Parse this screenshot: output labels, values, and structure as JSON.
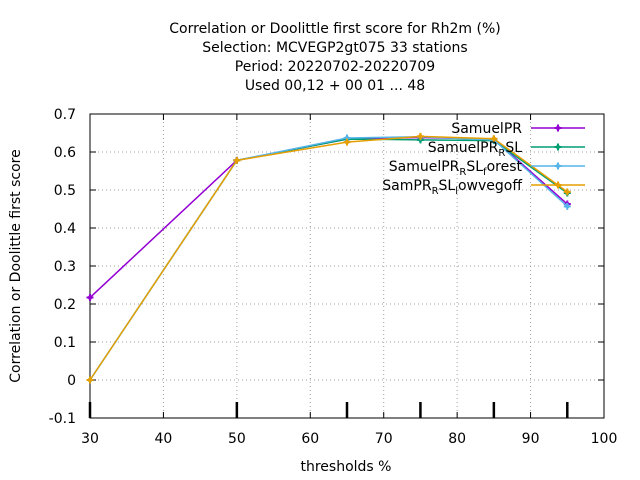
{
  "chart_data": {
    "type": "line",
    "title_lines": [
      "Correlation or Doolittle first score  for Rh2m (%)",
      "Selection: MCVEGP2gt075     33 stations",
      "Period: 20220702-20220709",
      "Used  00,12  + 00 01 ... 48"
    ],
    "xlabel": "thresholds %",
    "ylabel": "Correlation or Doolittle first score",
    "xlim": [
      30,
      100
    ],
    "ylim": [
      -0.1,
      0.7
    ],
    "xticks": [
      30,
      40,
      50,
      60,
      70,
      80,
      90,
      100
    ],
    "yticks": [
      -0.1,
      0,
      0.1,
      0.2,
      0.3,
      0.4,
      0.5,
      0.6,
      0.7
    ],
    "grid": true,
    "legend_position": "top-right",
    "series": [
      {
        "name": "SamuelPR",
        "legend_main": "SamuelPR",
        "legend_sub": "",
        "legend_tail": "",
        "color": "#9400d3",
        "marker": "plus",
        "x": [
          30,
          50,
          65,
          75,
          85,
          95
        ],
        "y": [
          0.217,
          0.578,
          0.634,
          0.638,
          0.634,
          0.463
        ]
      },
      {
        "name": "SamuelPR_RSL",
        "legend_main": "SamuelPR",
        "legend_sub": "R",
        "legend_tail": "SL",
        "color": "#009e73",
        "marker": "plus",
        "x": [
          30,
          50,
          65,
          75,
          85,
          95
        ],
        "y": [
          0.0,
          0.578,
          0.634,
          0.632,
          0.63,
          0.492
        ]
      },
      {
        "name": "SamuelPR_RSL_forest",
        "legend_main": "SamuelPR",
        "legend_sub": "R",
        "legend_tail": "SL",
        "legend_sub2": "f",
        "legend_tail2": "orest",
        "color": "#56b4e9",
        "marker": "plus",
        "x": [
          30,
          50,
          65,
          75,
          85,
          95
        ],
        "y": [
          0.0,
          0.578,
          0.637,
          0.64,
          0.632,
          0.457
        ]
      },
      {
        "name": "SamPR_RSL_lowvegoff",
        "legend_main": "SamPR",
        "legend_sub": "R",
        "legend_tail": "SL",
        "legend_sub2": "l",
        "legend_tail2": "owvegoff",
        "color": "#e69f00",
        "marker": "plus",
        "x": [
          30,
          50,
          65,
          75,
          85,
          95
        ],
        "y": [
          0.0,
          0.578,
          0.626,
          0.641,
          0.635,
          0.495
        ]
      }
    ],
    "station_markers_x": [
      30,
      50,
      65,
      75,
      85,
      95
    ]
  }
}
